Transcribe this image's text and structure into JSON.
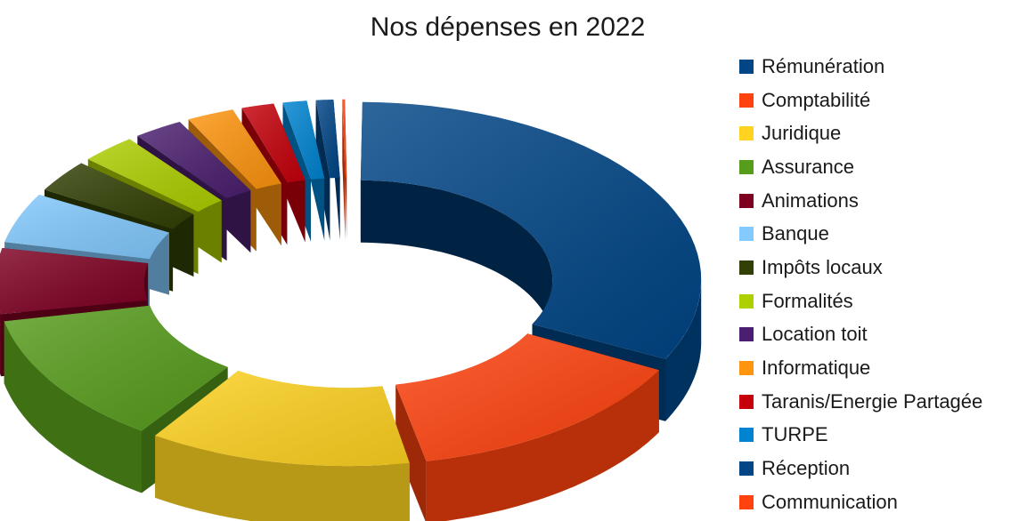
{
  "chart_data": {
    "type": "pie",
    "variant": "3d-exploded-donut",
    "title": "Nos dépenses en 2022",
    "legend_position": "right",
    "categories": [
      "Rémunération",
      "Comptabilité",
      "Juridique",
      "Assurance",
      "Animations",
      "Banque",
      "Impôts locaux",
      "Formalités",
      "Location toit",
      "Informatique",
      "Taranis/Energie Partagée",
      "TURPE",
      "Réception",
      "Communication"
    ],
    "values": [
      32.4,
      14.3,
      12.7,
      12.3,
      6.3,
      4.9,
      3.3,
      3.0,
      2.7,
      2.6,
      1.9,
      1.5,
      1.2,
      0.5
    ],
    "unit": "percent (estimated share of total)",
    "colors": [
      "#004586",
      "#ff420e",
      "#ffd320",
      "#579d1c",
      "#7e0021",
      "#83caff",
      "#314004",
      "#aecf00",
      "#4b1f6f",
      "#ff950e",
      "#c5000b",
      "#0084d1",
      "#004586",
      "#ff420e"
    ]
  }
}
